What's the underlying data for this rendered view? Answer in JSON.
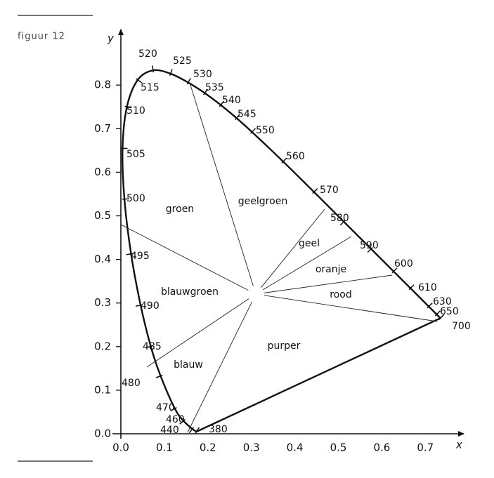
{
  "figure_label": "figuur 12",
  "axes": {
    "x_label": "x",
    "y_label": "y",
    "x_ticks": [
      "0.0",
      "0.1",
      "0.2",
      "0.3",
      "0.4",
      "0.5",
      "0.6",
      "0.7"
    ],
    "y_ticks": [
      "0.0",
      "0.1",
      "0.2",
      "0.3",
      "0.4",
      "0.5",
      "0.6",
      "0.7",
      "0.8"
    ]
  },
  "wavelengths": [
    380,
    440,
    460,
    470,
    480,
    485,
    490,
    495,
    500,
    505,
    510,
    515,
    520,
    525,
    530,
    535,
    540,
    545,
    550,
    560,
    570,
    580,
    590,
    600,
    610,
    630,
    650,
    700
  ],
  "regions": [
    "groen",
    "geelgroen",
    "geel",
    "oranje",
    "rood",
    "blauwgroen",
    "blauw",
    "purper"
  ]
}
